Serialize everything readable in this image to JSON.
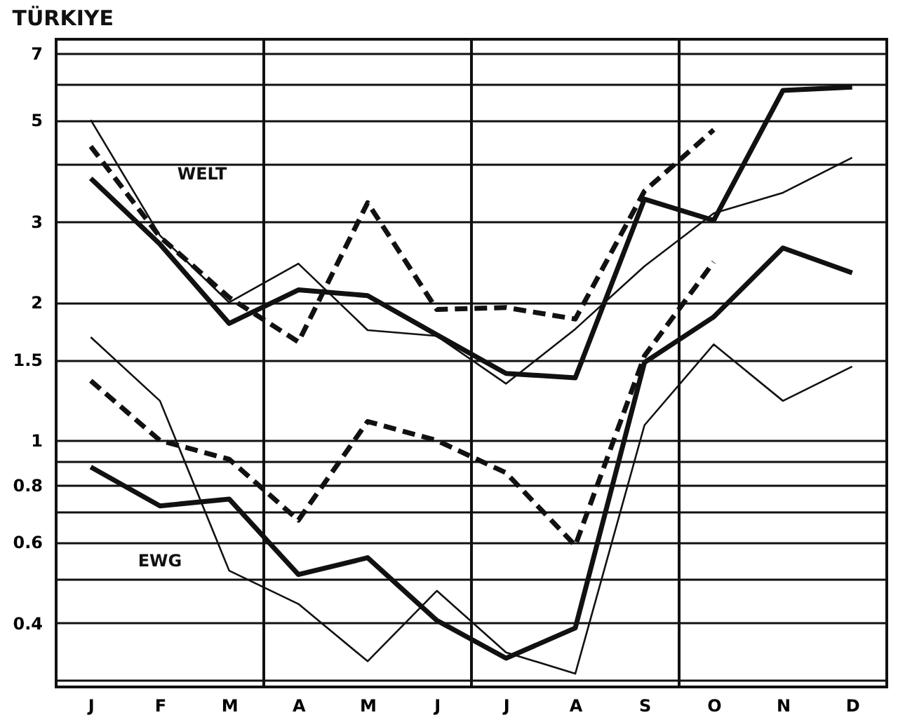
{
  "chart_data": {
    "type": "line",
    "title": "TÜRKIYE",
    "log": "y",
    "grid": "y",
    "categories": [
      "J",
      "F",
      "M",
      "A",
      "M",
      "J",
      "J",
      "A",
      "S",
      "O",
      "N",
      "D"
    ],
    "ylim": [
      0.29,
      7.5
    ],
    "yticks": [
      {
        "value": 0.3,
        "label": null
      },
      0.4,
      {
        "value": 0.5,
        "label": null
      },
      0.6,
      {
        "value": 0.7,
        "label": null
      },
      0.8,
      {
        "value": 0.9,
        "label": null
      },
      1,
      1.5,
      2,
      3,
      {
        "value": 4,
        "label": null
      },
      5,
      {
        "value": 6,
        "label": null
      },
      7
    ],
    "series": [
      {
        "color": "#111111",
        "line_style": "solid",
        "values": [
          5.0,
          2.8,
          2.0,
          2.43,
          1.74,
          1.69,
          1.33,
          1.75,
          2.4,
          3.13,
          3.47,
          4.14
        ]
      },
      {
        "color": "#111111",
        "line_style": "solid",
        "values": [
          3.73,
          2.68,
          1.8,
          2.13,
          2.07,
          1.7,
          1.4,
          1.37,
          3.36,
          3.02,
          5.8,
          5.9
        ]
      },
      {
        "color": "#111111",
        "line_style": "dashed",
        "values": [
          4.38,
          2.78,
          2.05,
          1.64,
          3.3,
          1.93,
          1.95,
          1.84,
          3.5,
          4.76,
          null,
          null
        ]
      },
      {
        "color": "#111111",
        "line_style": "solid",
        "values": [
          1.68,
          1.22,
          0.52,
          0.44,
          0.33,
          0.47,
          0.345,
          0.31,
          1.08,
          1.62,
          1.22,
          1.45
        ]
      },
      {
        "color": "#111111",
        "line_style": "solid",
        "values": [
          0.875,
          0.72,
          0.745,
          0.51,
          0.555,
          0.405,
          0.335,
          0.39,
          1.48,
          1.86,
          2.63,
          2.32
        ]
      },
      {
        "color": "#111111",
        "line_style": "dashed",
        "values": [
          1.35,
          1.0,
          0.91,
          0.67,
          1.1,
          1.0,
          0.85,
          0.59,
          1.53,
          2.45,
          null,
          null
        ]
      }
    ],
    "annotations": [
      "WELT",
      "EWG"
    ]
  }
}
